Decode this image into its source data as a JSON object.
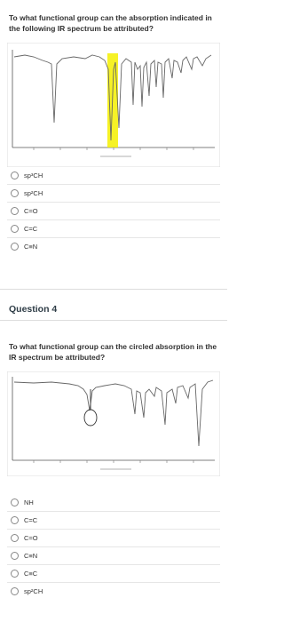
{
  "questions": [
    {
      "text": "To what functional group can the absorption indicated in the following IR spectrum be attributed?",
      "options": [
        "sp³CH",
        "sp²CH",
        "C=O",
        "C=C",
        "C≡N"
      ]
    },
    {
      "heading": "Question 4",
      "text": "To what functional group can the circled absorption in the IR spectrum be attributed?",
      "options": [
        "NH",
        "C=C",
        "C=O",
        "C≡N",
        "C≡C",
        "sp²CH"
      ]
    }
  ]
}
